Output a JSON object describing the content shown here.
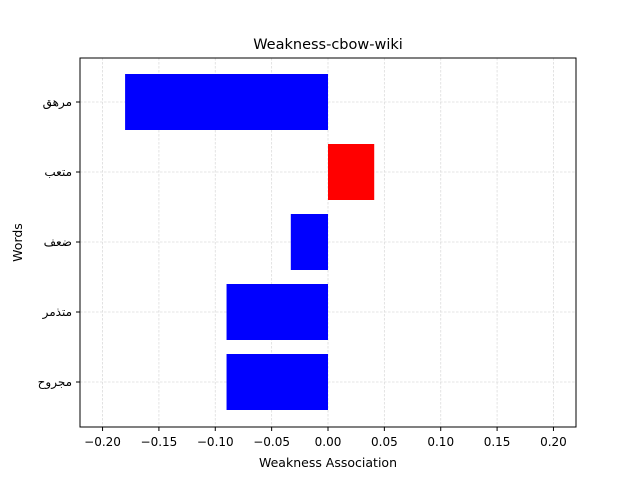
{
  "chart_data": {
    "type": "bar",
    "orientation": "horizontal",
    "title": "Weakness-cbow-wiki",
    "xlabel": "Weakness Association",
    "ylabel": "Words",
    "categories": [
      "مرهق",
      "متعب",
      "ضعف",
      "متذمر",
      "مجروح"
    ],
    "values": [
      -0.18,
      0.041,
      -0.033,
      -0.09,
      -0.09
    ],
    "xlim": [
      -0.22,
      0.22
    ],
    "xticks": [
      -0.2,
      -0.15,
      -0.1,
      -0.05,
      0.0,
      0.05,
      0.1,
      0.15,
      0.2
    ],
    "xtick_labels": [
      "−0.20",
      "−0.15",
      "−0.10",
      "−0.05",
      "0.00",
      "0.05",
      "0.10",
      "0.15",
      "0.20"
    ],
    "grid": true,
    "colors": {
      "negative": "#0000ff",
      "positive": "#ff0000"
    }
  }
}
